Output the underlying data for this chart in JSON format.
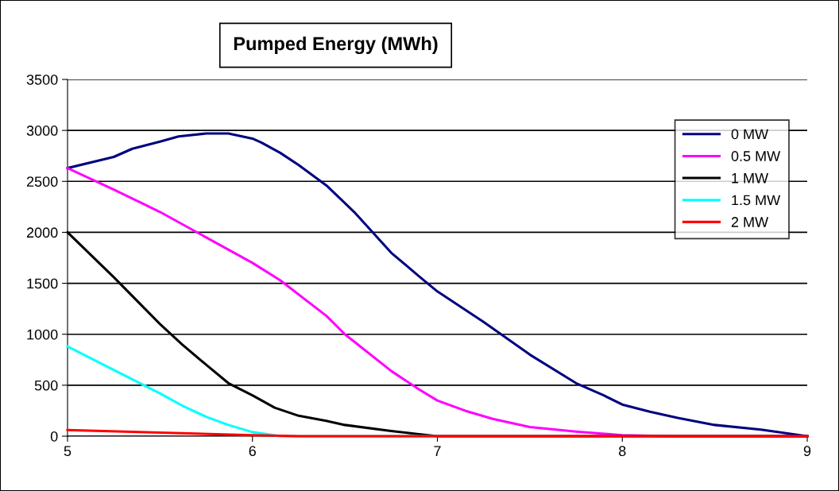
{
  "chart_data": {
    "type": "line",
    "title": "Pumped Energy (MWh)",
    "series": [
      {
        "name": "0 MW",
        "color": "#000080",
        "x": [
          5,
          5.25,
          5.35,
          5.5,
          5.6,
          5.75,
          5.87,
          6,
          6.05,
          6.15,
          6.25,
          6.4,
          6.55,
          6.75,
          6.9,
          7,
          7.25,
          7.5,
          7.75,
          7.9,
          8,
          8.15,
          8.3,
          8.5,
          8.75,
          9
        ],
        "values": [
          2630,
          2740,
          2820,
          2890,
          2940,
          2970,
          2970,
          2920,
          2880,
          2780,
          2660,
          2460,
          2200,
          1800,
          1570,
          1420,
          1120,
          800,
          520,
          400,
          310,
          240,
          180,
          110,
          65,
          0
        ]
      },
      {
        "name": "0.5 MW",
        "color": "#ff00ff",
        "x": [
          5,
          5.25,
          5.5,
          5.75,
          6,
          6.15,
          6.4,
          6.5,
          6.75,
          6.9,
          7,
          7.15,
          7.3,
          7.5,
          7.75,
          8,
          8.25,
          9
        ],
        "values": [
          2630,
          2420,
          2200,
          1950,
          1700,
          1530,
          1180,
          1000,
          640,
          460,
          350,
          250,
          170,
          90,
          45,
          10,
          0,
          0
        ]
      },
      {
        "name": "1 MW",
        "color": "#000000",
        "x": [
          5,
          5.25,
          5.5,
          5.62,
          5.75,
          5.87,
          6,
          6.12,
          6.25,
          6.4,
          6.5,
          6.75,
          6.9,
          7,
          8,
          9
        ],
        "values": [
          2000,
          1560,
          1100,
          900,
          700,
          520,
          400,
          280,
          200,
          150,
          110,
          50,
          20,
          0,
          0,
          0
        ]
      },
      {
        "name": "1.5 MW",
        "color": "#00ffff",
        "x": [
          5,
          5.25,
          5.5,
          5.62,
          5.75,
          5.87,
          6,
          6.15,
          7
        ],
        "values": [
          880,
          650,
          420,
          300,
          190,
          110,
          40,
          0,
          0
        ]
      },
      {
        "name": "2 MW",
        "color": "#ff0000",
        "x": [
          5,
          5.5,
          6,
          6.25,
          7,
          8,
          9
        ],
        "values": [
          60,
          35,
          10,
          0,
          0,
          0,
          0
        ]
      }
    ],
    "xlim": [
      5,
      9
    ],
    "xticks": [
      5,
      6,
      7,
      8,
      9
    ],
    "ylim": [
      0,
      3500
    ],
    "yticks": [
      0,
      500,
      1000,
      1500,
      2000,
      2500,
      3000,
      3500
    ],
    "grid": "y",
    "legend": "right",
    "marker": "none",
    "line_style": "solid"
  }
}
